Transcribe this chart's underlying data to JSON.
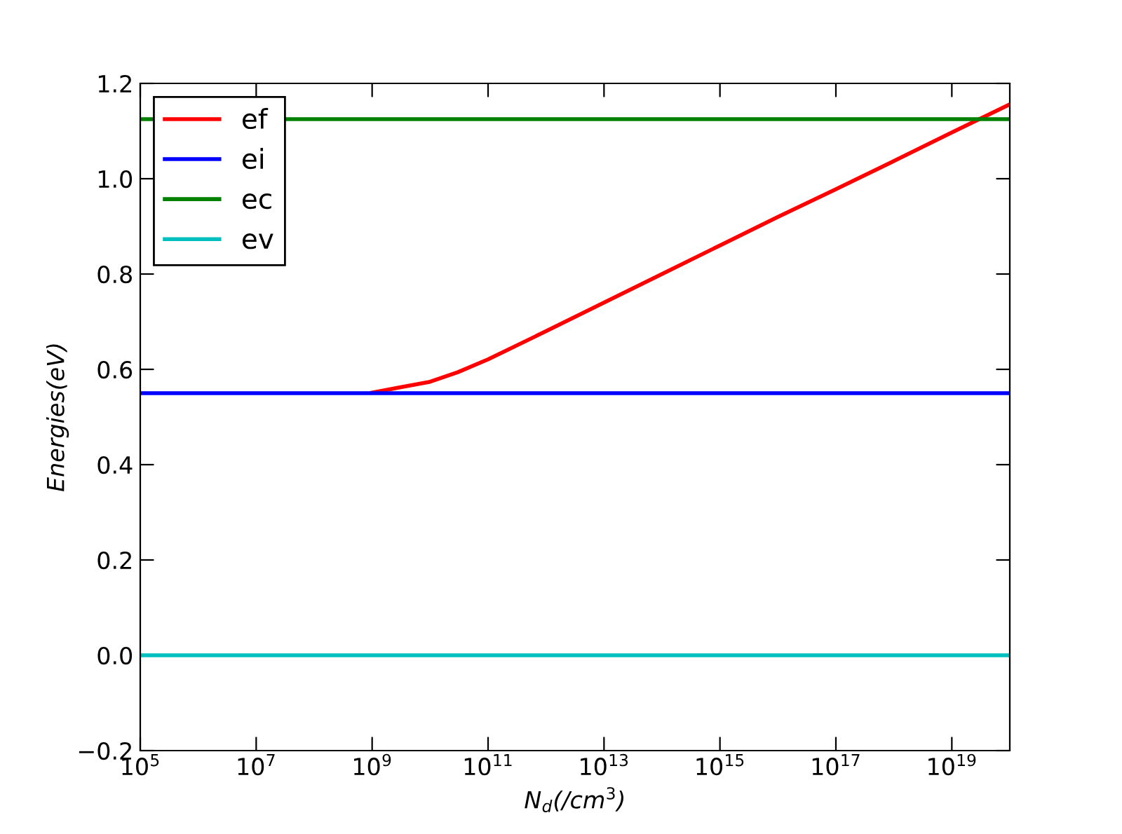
{
  "chart_data": {
    "type": "line",
    "xlabel": "N$_{d}$(/cm$^{3}$)",
    "ylabel": "Energies(eV)",
    "log": "x",
    "xlim": [
      100000,
      1e+20
    ],
    "ylim": [
      -0.2,
      1.2
    ],
    "xticks": [
      {
        "value": 100000.0,
        "label": "10$^{5}$"
      },
      {
        "value": 10000000.0,
        "label": "10$^{7}$"
      },
      {
        "value": 1000000000.0,
        "label": "10$^{9}$"
      },
      {
        "value": 100000000000.0,
        "label": "10$^{11}$"
      },
      {
        "value": 10000000000000.0,
        "label": "10$^{13}$"
      },
      {
        "value": 1000000000000000.0,
        "label": "10$^{15}$"
      },
      {
        "value": 1e+17,
        "label": "10$^{17}$"
      },
      {
        "value": 1e+19,
        "label": "10$^{19}$"
      }
    ],
    "yticks": [
      {
        "value": -0.2,
        "label": "−0.2"
      },
      {
        "value": 0,
        "label": "0.0"
      },
      0.2,
      0.4,
      0.6,
      0.8,
      {
        "value": 1,
        "label": "1.0"
      },
      1.2
    ],
    "grid": false,
    "legend": "top left",
    "marker": "none",
    "line_style": "solid",
    "series": [
      {
        "name": "ef",
        "color": "#ff0000",
        "x": [
          1000000000.0,
          3000000000.0,
          10000000000.0,
          30000000000.0,
          100000000000.0,
          1000000000000.0,
          10000000000000.0,
          100000000000000.0,
          1000000000000000.0,
          1e+16,
          1e+17,
          1e+18,
          1e+19,
          1e+20
        ],
        "values": [
          0.551,
          0.562,
          0.574,
          0.594,
          0.621,
          0.68,
          0.74,
          0.8,
          0.86,
          0.92,
          0.978,
          1.037,
          1.097,
          1.156
        ]
      },
      {
        "name": "ei",
        "color": "#0000ff",
        "x": [
          100000.0,
          1e+20
        ],
        "values": [
          0.55,
          0.55
        ]
      },
      {
        "name": "ec",
        "color": "#008000",
        "x": [
          100000.0,
          1e+20
        ],
        "values": [
          1.125,
          1.125
        ]
      },
      {
        "name": "ev",
        "color": "#00bfbf",
        "x": [
          100000.0,
          1e+20
        ],
        "values": [
          0.0,
          0.0
        ]
      }
    ]
  }
}
